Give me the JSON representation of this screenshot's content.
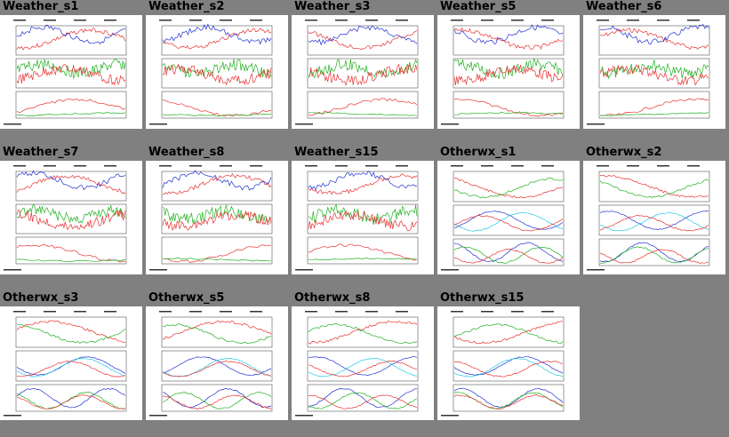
{
  "gallery": {
    "items": [
      {
        "label": "Weather_s1",
        "kind": "weather"
      },
      {
        "label": "Weather_s2",
        "kind": "weather"
      },
      {
        "label": "Weather_s3",
        "kind": "weather"
      },
      {
        "label": "Weather_s5",
        "kind": "weather"
      },
      {
        "label": "Weather_s6",
        "kind": "weather"
      },
      {
        "label": "Weather_s7",
        "kind": "weather"
      },
      {
        "label": "Weather_s8",
        "kind": "weather"
      },
      {
        "label": "Weather_s15",
        "kind": "weather"
      },
      {
        "label": "Otherwx_s1",
        "kind": "otherwx"
      },
      {
        "label": "Otherwx_s2",
        "kind": "otherwx"
      },
      {
        "label": "Otherwx_s3",
        "kind": "otherwx"
      },
      {
        "label": "Otherwx_s5",
        "kind": "otherwx"
      },
      {
        "label": "Otherwx_s8",
        "kind": "otherwx"
      },
      {
        "label": "Otherwx_s15",
        "kind": "otherwx"
      }
    ]
  },
  "colors": {
    "background": "#808080",
    "thumb_background": "#ffffff",
    "series_red": "#e83030",
    "series_green": "#20b020",
    "series_blue": "#2030d0",
    "series_cyan": "#20c8e8",
    "series_purple": "#8030c0"
  }
}
